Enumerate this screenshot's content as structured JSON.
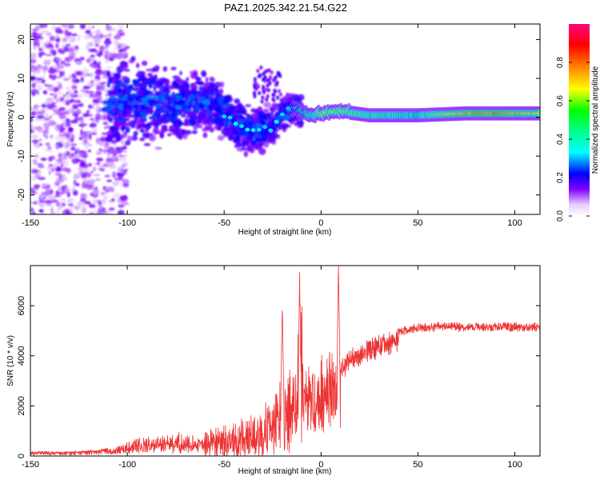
{
  "title": "PAZ1.2025.342.21.54.G22",
  "chart_data": [
    {
      "type": "heatmap",
      "xlabel": "Height of straight line (km)",
      "ylabel": "Frequency (Hz)",
      "xlim": [
        -150,
        113
      ],
      "ylim": [
        -25,
        24
      ],
      "xticks": [
        -150,
        -100,
        -50,
        0,
        50,
        100
      ],
      "yticks": [
        20,
        10,
        0,
        -10,
        -20
      ],
      "colorbar": {
        "label": "Normalized spectral amplitude",
        "range": [
          0.0,
          1.0
        ],
        "ticks": [
          0.0,
          0.2,
          0.4,
          0.6,
          0.8
        ],
        "ticklabels": [
          "0.0",
          "0.2",
          "0.4",
          "0.6",
          "0.8"
        ],
        "colormap": [
          "#ffffff",
          "#d9b3ff",
          "#8000ff",
          "#0000ff",
          "#00ffff",
          "#00ff00",
          "#ffff00",
          "#ff8000",
          "#ff0000",
          "#ff0080"
        ]
      },
      "ridge": [
        {
          "x": -110,
          "freq": 3.0,
          "amp": 0.25
        },
        {
          "x": -100,
          "freq": 4.5,
          "amp": 0.3
        },
        {
          "x": -80,
          "freq": 3.5,
          "amp": 0.25
        },
        {
          "x": -55,
          "freq": 3.5,
          "amp": 0.3
        },
        {
          "x": -45,
          "freq": -1.0,
          "amp": 0.35
        },
        {
          "x": -35,
          "freq": -3.5,
          "amp": 0.35
        },
        {
          "x": -25,
          "freq": -2.0,
          "amp": 0.35
        },
        {
          "x": -15,
          "freq": 2.5,
          "amp": 0.4
        },
        {
          "x": -5,
          "freq": 0.5,
          "amp": 0.55
        },
        {
          "x": 0,
          "freq": 1.0,
          "amp": 0.7
        },
        {
          "x": 10,
          "freq": 1.5,
          "amp": 0.65
        },
        {
          "x": 25,
          "freq": 0.5,
          "amp": 0.6
        },
        {
          "x": 50,
          "freq": 0.5,
          "amp": 0.55
        },
        {
          "x": 75,
          "freq": 1.0,
          "amp": 0.8
        },
        {
          "x": 90,
          "freq": 1.0,
          "amp": 0.85
        },
        {
          "x": 105,
          "freq": 1.0,
          "amp": 0.75
        },
        {
          "x": 113,
          "freq": 1.0,
          "amp": 0.7
        }
      ]
    },
    {
      "type": "line",
      "xlabel": "Height of straight line (km)",
      "ylabel": "SNR (10 * v/v)",
      "xlim": [
        -150,
        113
      ],
      "ylim": [
        0,
        7600
      ],
      "xticks": [
        -150,
        -100,
        -50,
        0,
        50,
        100
      ],
      "yticks": [
        0,
        2000,
        4000,
        6000
      ],
      "color": "#ee3333",
      "envelope": {
        "x": [
          -150,
          -130,
          -115,
          -105,
          -95,
          -80,
          -65,
          -50,
          -40,
          -30,
          -22,
          -18,
          -12,
          -8,
          -3,
          0,
          5,
          10,
          15,
          20,
          30,
          40,
          50,
          60,
          80,
          100,
          113
        ],
        "y": [
          150,
          150,
          200,
          400,
          700,
          800,
          900,
          1100,
          1300,
          1700,
          2500,
          3000,
          3200,
          3300,
          3100,
          3600,
          4000,
          3700,
          4200,
          4400,
          4800,
          5100,
          5250,
          5300,
          5300,
          5300,
          5300
        ]
      },
      "spikes": [
        {
          "x": -20,
          "y": 6000
        },
        {
          "x": -11,
          "y": 7600
        },
        {
          "x": 9,
          "y": 7600
        }
      ]
    }
  ]
}
